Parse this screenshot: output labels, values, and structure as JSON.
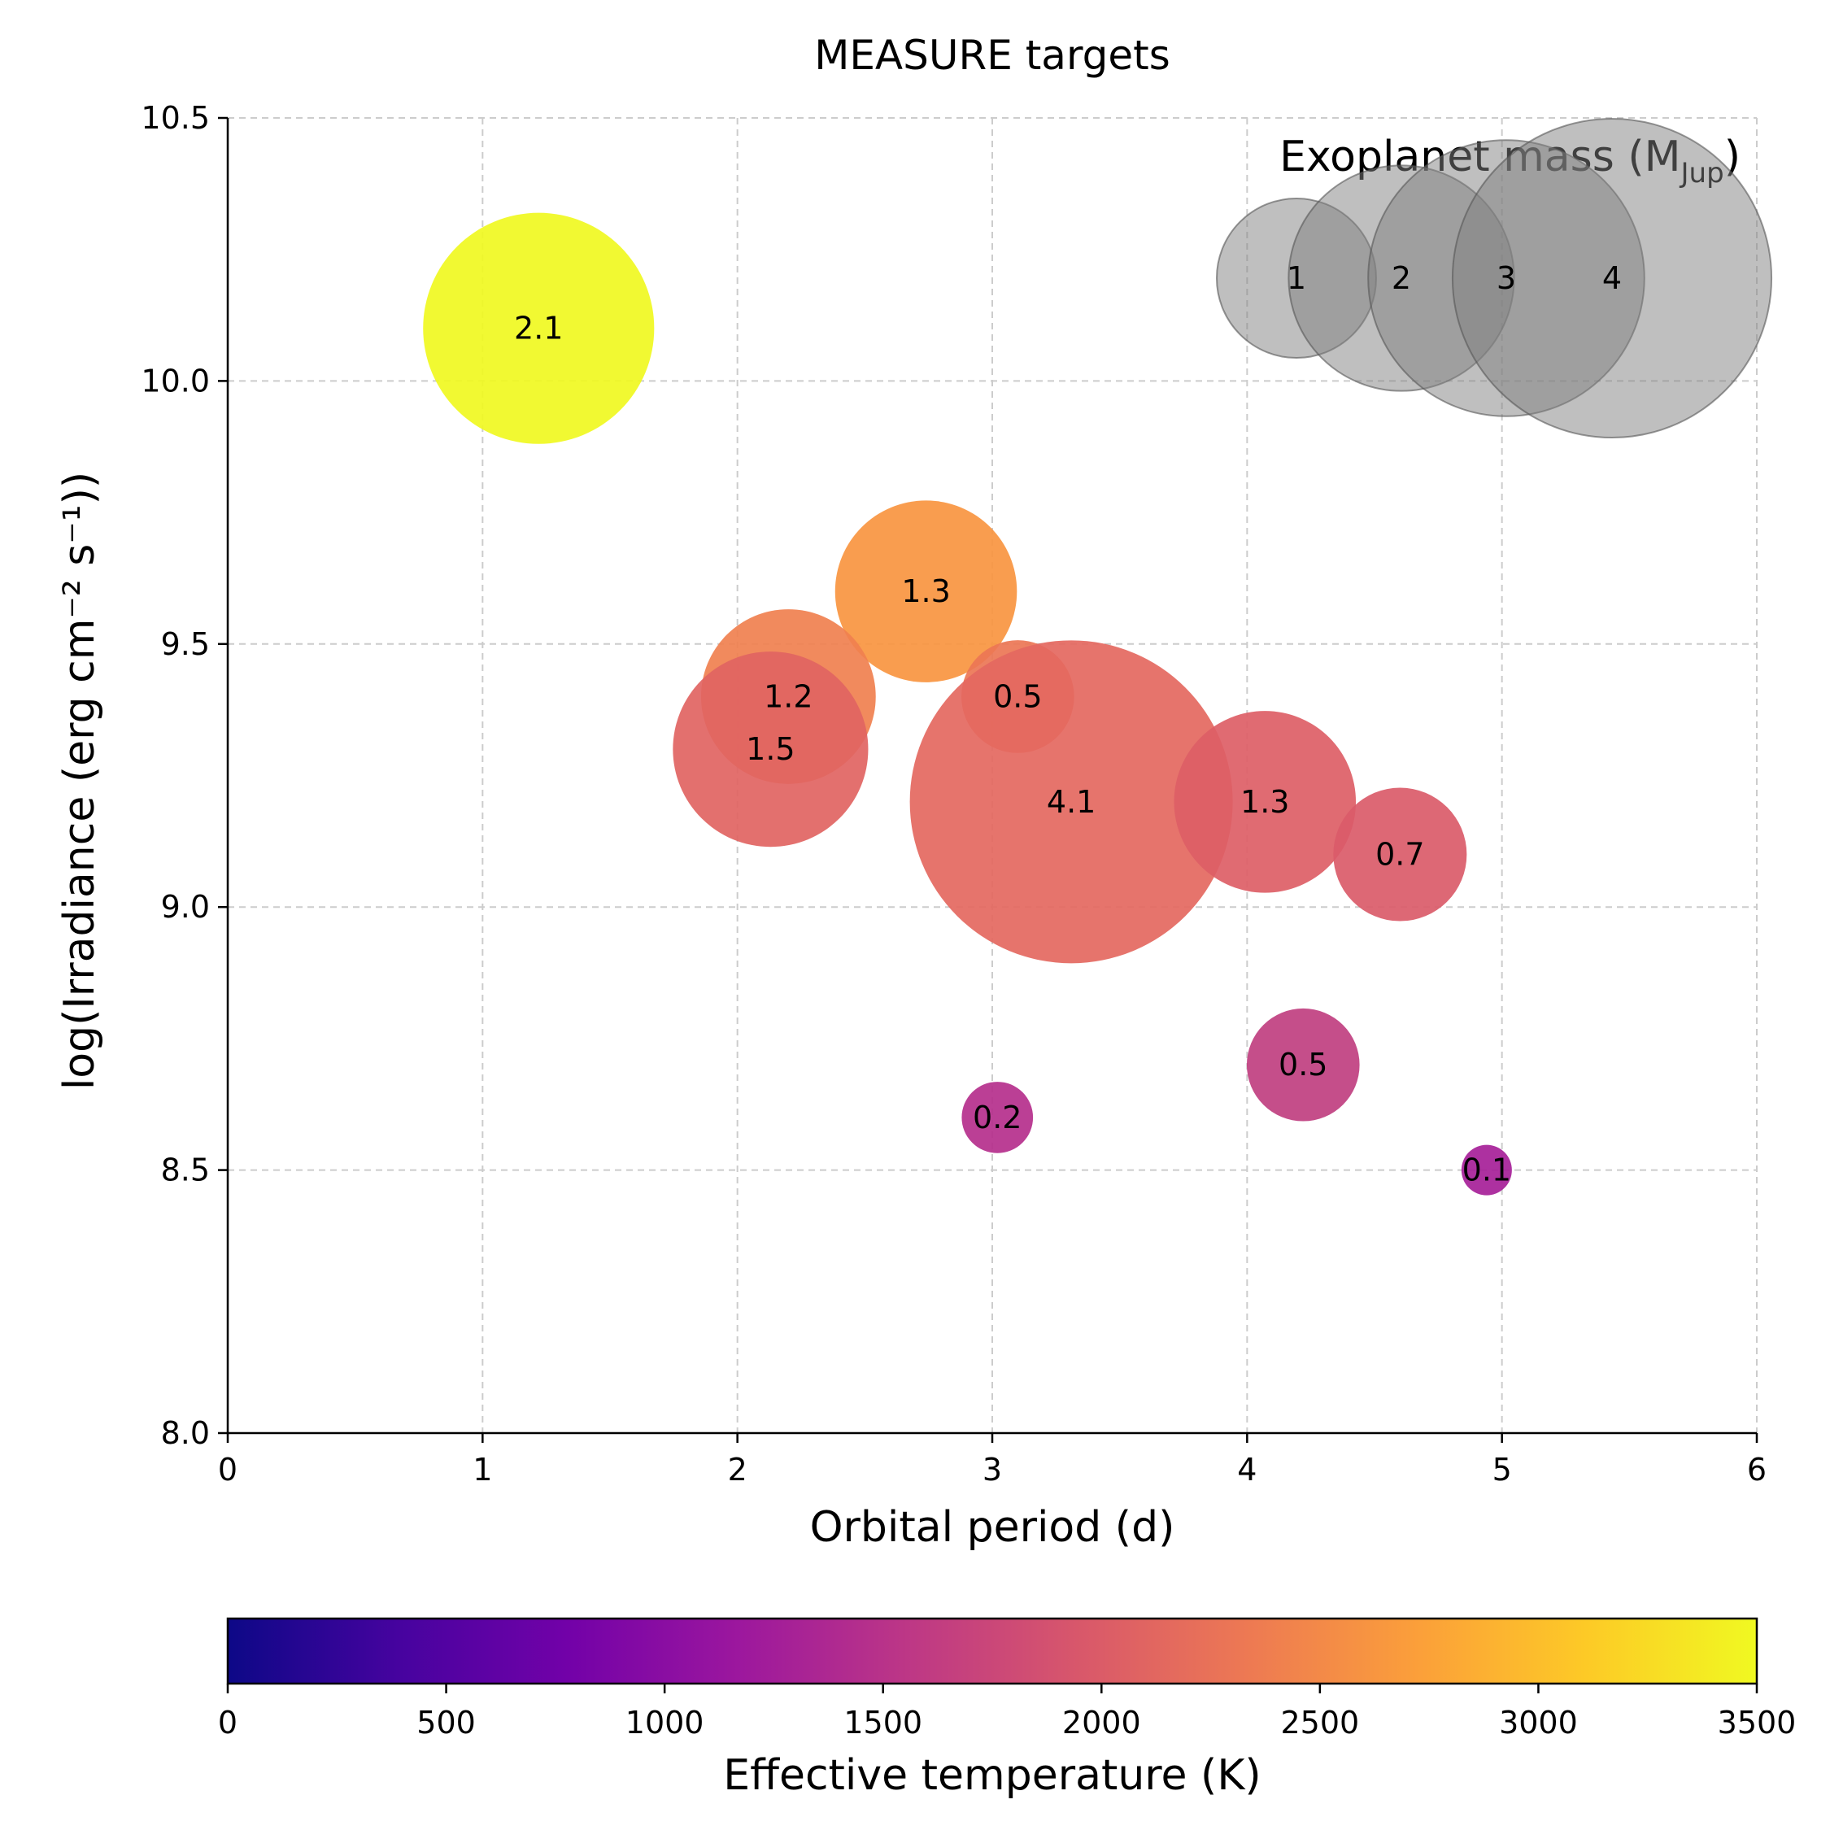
{
  "chart_data": {
    "type": "scatter",
    "title": "MEASURE targets",
    "xlabel": "Orbital period (d)",
    "ylabel": "log(Irradiance (erg cm⁻² s⁻¹))",
    "xlim": [
      0,
      6
    ],
    "ylim": [
      8.0,
      10.5
    ],
    "xticks": [
      "0",
      "1",
      "2",
      "3",
      "4",
      "5",
      "6"
    ],
    "yticks": [
      "8.0",
      "8.5",
      "9.0",
      "9.5",
      "10.0",
      "10.5"
    ],
    "grid": true,
    "points": [
      {
        "x": 1.22,
        "y": 10.1,
        "mass": 2.1,
        "label": "2.1",
        "teff": 3450,
        "color": "#f0f921"
      },
      {
        "x": 2.74,
        "y": 9.6,
        "mass": 1.3,
        "label": "1.3",
        "teff": 2550,
        "color": "#f89540"
      },
      {
        "x": 2.2,
        "y": 9.4,
        "mass": 1.2,
        "label": "1.2",
        "teff": 2350,
        "color": "#f0804f"
      },
      {
        "x": 3.1,
        "y": 9.4,
        "mass": 0.5,
        "label": "0.5",
        "teff": 2250,
        "color": "#eb7655"
      },
      {
        "x": 2.13,
        "y": 9.3,
        "mass": 1.5,
        "label": "1.5",
        "teff": 2050,
        "color": "#e16462"
      },
      {
        "x": 3.31,
        "y": 9.2,
        "mass": 4.1,
        "label": "4.1",
        "teff": 2100,
        "color": "#e4685f"
      },
      {
        "x": 4.07,
        "y": 9.2,
        "mass": 1.3,
        "label": "1.3",
        "teff": 2000,
        "color": "#dd5e66"
      },
      {
        "x": 4.6,
        "y": 9.1,
        "mass": 0.7,
        "label": "0.7",
        "teff": 1950,
        "color": "#da5b69"
      },
      {
        "x": 4.22,
        "y": 8.7,
        "mass": 0.5,
        "label": "0.5",
        "teff": 1500,
        "color": "#c03f80"
      },
      {
        "x": 3.02,
        "y": 8.6,
        "mass": 0.2,
        "label": "0.2",
        "teff": 1400,
        "color": "#b52f8c"
      },
      {
        "x": 4.94,
        "y": 8.5,
        "mass": 0.1,
        "label": "0.1",
        "teff": 1250,
        "color": "#a62098"
      }
    ],
    "size_legend": {
      "title_main": "Exoplanet mass (M",
      "title_sub": "Jup",
      "title_end": ")",
      "entries": [
        {
          "label": "1",
          "mass": 1
        },
        {
          "label": "2",
          "mass": 2
        },
        {
          "label": "3",
          "mass": 3
        },
        {
          "label": "4",
          "mass": 4
        }
      ],
      "placement": "top-right",
      "color": "#808080"
    },
    "colorbar": {
      "label": "Effective temperature (K)",
      "range": [
        0,
        3500
      ],
      "ticks": [
        "0",
        "500",
        "1000",
        "1500",
        "2000",
        "2500",
        "3000",
        "3500"
      ],
      "colormap": "plasma",
      "stops": [
        "#0d0887",
        "#46039f",
        "#7201a8",
        "#9c179e",
        "#bd3786",
        "#d8576b",
        "#ed7953",
        "#fb9f3a",
        "#fdca26",
        "#f0f921"
      ]
    }
  }
}
